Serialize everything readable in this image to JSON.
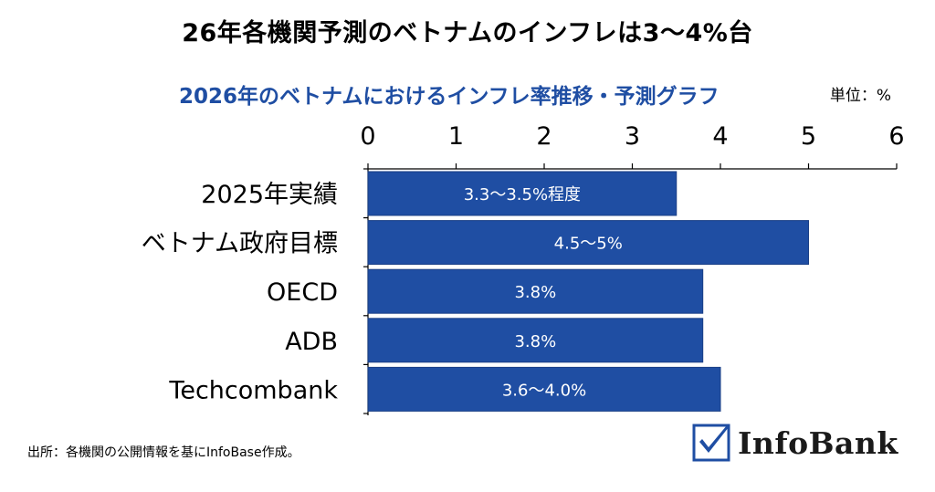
{
  "title": "26年各機関予測のベトナムのインフレは3〜4%台",
  "unit_label": "単位：%",
  "source_note": "出所：各機関の公開情報を基にInfoBase作成。",
  "logo": {
    "name": "InfoBank",
    "check_color": "#1f4ea3"
  },
  "colors": {
    "bar": "#1f4ea3",
    "bar_border": "#1a3f86",
    "subtitle": "#1f4ea3"
  },
  "chart_data": {
    "type": "bar",
    "orientation": "horizontal",
    "title": "2026年のベトナムにおけるインフレ率推移・予測グラフ",
    "xaxis_position": "top",
    "xlim": [
      0,
      6
    ],
    "xticks": [
      0,
      1,
      2,
      3,
      4,
      5,
      6
    ],
    "grid": false,
    "categories": [
      "2025年実績",
      "ベトナム政府目標",
      "OECD",
      "ADB",
      "Techcombank"
    ],
    "values": [
      3.5,
      5.0,
      3.8,
      3.8,
      4.0
    ],
    "data_labels": [
      "3.3〜3.5%程度",
      "4.5〜5%",
      "3.8%",
      "3.8%",
      "3.6〜4.0%"
    ]
  }
}
